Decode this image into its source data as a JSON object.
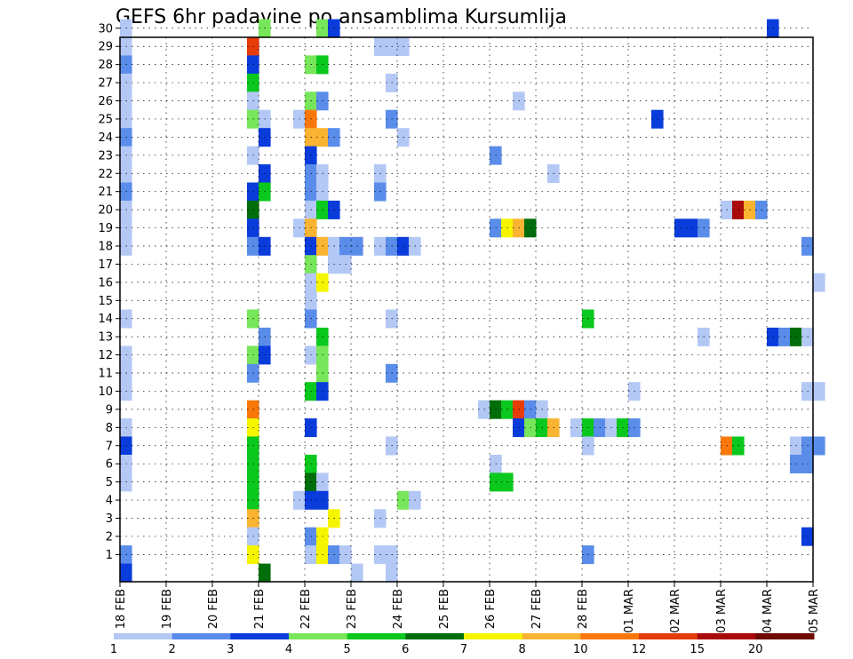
{
  "chart_data": {
    "type": "heatmap",
    "title": "GEFS 6hr padavine po ansamblima Kursumlija",
    "y_range": [
      1,
      30
    ],
    "y_ticks": [
      "1",
      "2",
      "3",
      "4",
      "5",
      "6",
      "7",
      "8",
      "9",
      "10",
      "11",
      "12",
      "13",
      "14",
      "15",
      "16",
      "17",
      "18",
      "19",
      "20",
      "21",
      "22",
      "23",
      "24",
      "25",
      "26",
      "27",
      "28",
      "29",
      "30"
    ],
    "x_ticks": [
      "18 FEB",
      "19 FEB",
      "20 FEB",
      "21 FEB",
      "22 FEB",
      "23 FEB",
      "24 FEB",
      "25 FEB",
      "26 FEB",
      "27 FEB",
      "28 FEB",
      "01 MAR",
      "02 MAR",
      "03 MAR",
      "04 MAR",
      "05 MAR"
    ],
    "grid": true,
    "colorbar": {
      "labels": [
        "1",
        "2",
        "3",
        "4",
        "5",
        "6",
        "7",
        "8",
        "10",
        "12",
        "15",
        "20"
      ],
      "colors": [
        "#b4c8f5",
        "#5a8cea",
        "#0a3cdc",
        "#78e65a",
        "#0ac81e",
        "#006e0a",
        "#f5f500",
        "#fab432",
        "#fa780a",
        "#e63c0a",
        "#aa0a0a",
        "#6e0a00"
      ]
    },
    "cells": [
      {
        "t": 0,
        "m": 30,
        "c": 0
      },
      {
        "t": 0,
        "m": 29,
        "c": 0
      },
      {
        "t": 0,
        "m": 28,
        "c": 1
      },
      {
        "t": 0,
        "m": 27,
        "c": 0
      },
      {
        "t": 0,
        "m": 26,
        "c": 0
      },
      {
        "t": 0,
        "m": 25,
        "c": 0
      },
      {
        "t": 0,
        "m": 24,
        "c": 1
      },
      {
        "t": 0,
        "m": 23,
        "c": 0
      },
      {
        "t": 0,
        "m": 22,
        "c": 0
      },
      {
        "t": 0,
        "m": 21,
        "c": 1
      },
      {
        "t": 0,
        "m": 20,
        "c": 0
      },
      {
        "t": 0,
        "m": 19,
        "c": 0
      },
      {
        "t": 0,
        "m": 18,
        "c": 0
      },
      {
        "t": 0,
        "m": 14,
        "c": 0
      },
      {
        "t": 0,
        "m": 12,
        "c": 0
      },
      {
        "t": 0,
        "m": 11,
        "c": 0
      },
      {
        "t": 0,
        "m": 10,
        "c": 0
      },
      {
        "t": 0,
        "m": 8,
        "c": 0
      },
      {
        "t": 0,
        "m": 7,
        "c": 2
      },
      {
        "t": 0,
        "m": 6,
        "c": 0
      },
      {
        "t": 0,
        "m": 5,
        "c": 0
      },
      {
        "t": 0,
        "m": 1,
        "c": 1
      },
      {
        "t": 0,
        "m": 0,
        "c": 2
      },
      {
        "t": 11,
        "m": 29,
        "c": 9
      },
      {
        "t": 11,
        "m": 28,
        "c": 2
      },
      {
        "t": 11,
        "m": 27,
        "c": 4
      },
      {
        "t": 11,
        "m": 26,
        "c": 0
      },
      {
        "t": 11,
        "m": 25,
        "c": 3
      },
      {
        "t": 11,
        "m": 23,
        "c": 0
      },
      {
        "t": 11,
        "m": 21,
        "c": 2
      },
      {
        "t": 11,
        "m": 20,
        "c": 5
      },
      {
        "t": 11,
        "m": 19,
        "c": 2
      },
      {
        "t": 11,
        "m": 18,
        "c": 1
      },
      {
        "t": 11,
        "m": 14,
        "c": 3
      },
      {
        "t": 11,
        "m": 12,
        "c": 3
      },
      {
        "t": 11,
        "m": 11,
        "c": 1
      },
      {
        "t": 11,
        "m": 9,
        "c": 8
      },
      {
        "t": 11,
        "m": 8,
        "c": 6
      },
      {
        "t": 11,
        "m": 7,
        "c": 4
      },
      {
        "t": 11,
        "m": 6,
        "c": 4
      },
      {
        "t": 11,
        "m": 5,
        "c": 4
      },
      {
        "t": 11,
        "m": 4,
        "c": 4
      },
      {
        "t": 11,
        "m": 3,
        "c": 7
      },
      {
        "t": 11,
        "m": 2,
        "c": 0
      },
      {
        "t": 11,
        "m": 1,
        "c": 6
      },
      {
        "t": 12,
        "m": 30,
        "c": 3
      },
      {
        "t": 12,
        "m": 25,
        "c": 0
      },
      {
        "t": 12,
        "m": 24,
        "c": 2
      },
      {
        "t": 12,
        "m": 22,
        "c": 2
      },
      {
        "t": 12,
        "m": 21,
        "c": 4
      },
      {
        "t": 12,
        "m": 18,
        "c": 2
      },
      {
        "t": 12,
        "m": 13,
        "c": 1
      },
      {
        "t": 12,
        "m": 12,
        "c": 2
      },
      {
        "t": 12,
        "m": 0,
        "c": 5
      },
      {
        "t": 15,
        "m": 25,
        "c": 0
      },
      {
        "t": 15,
        "m": 19,
        "c": 0
      },
      {
        "t": 15,
        "m": 4,
        "c": 0
      },
      {
        "t": 16,
        "m": 28,
        "c": 3
      },
      {
        "t": 16,
        "m": 26,
        "c": 3
      },
      {
        "t": 16,
        "m": 25,
        "c": 8
      },
      {
        "t": 16,
        "m": 24,
        "c": 7
      },
      {
        "t": 16,
        "m": 23,
        "c": 2
      },
      {
        "t": 16,
        "m": 22,
        "c": 1
      },
      {
        "t": 16,
        "m": 21,
        "c": 1
      },
      {
        "t": 16,
        "m": 20,
        "c": 0
      },
      {
        "t": 16,
        "m": 19,
        "c": 7
      },
      {
        "t": 16,
        "m": 18,
        "c": 2
      },
      {
        "t": 16,
        "m": 17,
        "c": 3
      },
      {
        "t": 16,
        "m": 16,
        "c": 0
      },
      {
        "t": 16,
        "m": 15,
        "c": 0
      },
      {
        "t": 16,
        "m": 14,
        "c": 1
      },
      {
        "t": 16,
        "m": 12,
        "c": 0
      },
      {
        "t": 16,
        "m": 10,
        "c": 4
      },
      {
        "t": 16,
        "m": 8,
        "c": 2
      },
      {
        "t": 16,
        "m": 6,
        "c": 4
      },
      {
        "t": 16,
        "m": 5,
        "c": 5
      },
      {
        "t": 16,
        "m": 4,
        "c": 2
      },
      {
        "t": 16,
        "m": 2,
        "c": 1
      },
      {
        "t": 16,
        "m": 1,
        "c": 0
      },
      {
        "t": 17,
        "m": 30,
        "c": 3
      },
      {
        "t": 17,
        "m": 28,
        "c": 4
      },
      {
        "t": 17,
        "m": 26,
        "c": 1
      },
      {
        "t": 17,
        "m": 24,
        "c": 7
      },
      {
        "t": 17,
        "m": 22,
        "c": 0
      },
      {
        "t": 17,
        "m": 21,
        "c": 0
      },
      {
        "t": 17,
        "m": 20,
        "c": 4
      },
      {
        "t": 17,
        "m": 18,
        "c": 7
      },
      {
        "t": 17,
        "m": 16,
        "c": 6
      },
      {
        "t": 17,
        "m": 13,
        "c": 4
      },
      {
        "t": 17,
        "m": 12,
        "c": 3
      },
      {
        "t": 17,
        "m": 11,
        "c": 3
      },
      {
        "t": 17,
        "m": 10,
        "c": 2
      },
      {
        "t": 17,
        "m": 5,
        "c": 0
      },
      {
        "t": 17,
        "m": 4,
        "c": 2
      },
      {
        "t": 17,
        "m": 2,
        "c": 6
      },
      {
        "t": 17,
        "m": 1,
        "c": 6
      },
      {
        "t": 18,
        "m": 30,
        "c": 2
      },
      {
        "t": 18,
        "m": 24,
        "c": 1
      },
      {
        "t": 18,
        "m": 20,
        "c": 2
      },
      {
        "t": 18,
        "m": 18,
        "c": 0
      },
      {
        "t": 18,
        "m": 17,
        "c": 0
      },
      {
        "t": 18,
        "m": 3,
        "c": 6
      },
      {
        "t": 18,
        "m": 1,
        "c": 1
      },
      {
        "t": 19,
        "m": 18,
        "c": 1
      },
      {
        "t": 19,
        "m": 17,
        "c": 0
      },
      {
        "t": 19,
        "m": 1,
        "c": 0
      },
      {
        "t": 20,
        "m": 18,
        "c": 1
      },
      {
        "t": 20,
        "m": 0,
        "c": 0
      },
      {
        "t": 22,
        "m": 29,
        "c": 0
      },
      {
        "t": 22,
        "m": 22,
        "c": 0
      },
      {
        "t": 22,
        "m": 21,
        "c": 1
      },
      {
        "t": 22,
        "m": 18,
        "c": 0
      },
      {
        "t": 22,
        "m": 3,
        "c": 0
      },
      {
        "t": 22,
        "m": 1,
        "c": 0
      },
      {
        "t": 23,
        "m": 29,
        "c": 0
      },
      {
        "t": 23,
        "m": 27,
        "c": 0
      },
      {
        "t": 23,
        "m": 25,
        "c": 1
      },
      {
        "t": 23,
        "m": 18,
        "c": 1
      },
      {
        "t": 23,
        "m": 14,
        "c": 0
      },
      {
        "t": 23,
        "m": 11,
        "c": 1
      },
      {
        "t": 23,
        "m": 7,
        "c": 0
      },
      {
        "t": 23,
        "m": 1,
        "c": 0
      },
      {
        "t": 23,
        "m": 0,
        "c": 0
      },
      {
        "t": 24,
        "m": 29,
        "c": 0
      },
      {
        "t": 24,
        "m": 24,
        "c": 0
      },
      {
        "t": 24,
        "m": 18,
        "c": 2
      },
      {
        "t": 24,
        "m": 4,
        "c": 3
      },
      {
        "t": 25,
        "m": 18,
        "c": 0
      },
      {
        "t": 25,
        "m": 4,
        "c": 0
      },
      {
        "t": 31,
        "m": 9,
        "c": 0
      },
      {
        "t": 32,
        "m": 23,
        "c": 1
      },
      {
        "t": 32,
        "m": 19,
        "c": 1
      },
      {
        "t": 32,
        "m": 9,
        "c": 5
      },
      {
        "t": 32,
        "m": 6,
        "c": 0
      },
      {
        "t": 32,
        "m": 5,
        "c": 4
      },
      {
        "t": 33,
        "m": 19,
        "c": 6
      },
      {
        "t": 33,
        "m": 9,
        "c": 4
      },
      {
        "t": 33,
        "m": 5,
        "c": 4
      },
      {
        "t": 34,
        "m": 26,
        "c": 0
      },
      {
        "t": 34,
        "m": 19,
        "c": 7
      },
      {
        "t": 34,
        "m": 9,
        "c": 9
      },
      {
        "t": 34,
        "m": 8,
        "c": 2
      },
      {
        "t": 35,
        "m": 19,
        "c": 5
      },
      {
        "t": 35,
        "m": 9,
        "c": 1
      },
      {
        "t": 35,
        "m": 8,
        "c": 3
      },
      {
        "t": 36,
        "m": 9,
        "c": 0
      },
      {
        "t": 36,
        "m": 8,
        "c": 4
      },
      {
        "t": 37,
        "m": 22,
        "c": 0
      },
      {
        "t": 37,
        "m": 8,
        "c": 7
      },
      {
        "t": 39,
        "m": 8,
        "c": 0
      },
      {
        "t": 40,
        "m": 14,
        "c": 4
      },
      {
        "t": 40,
        "m": 8,
        "c": 4
      },
      {
        "t": 40,
        "m": 7,
        "c": 0
      },
      {
        "t": 40,
        "m": 1,
        "c": 1
      },
      {
        "t": 41,
        "m": 8,
        "c": 1
      },
      {
        "t": 42,
        "m": 8,
        "c": 0
      },
      {
        "t": 43,
        "m": 8,
        "c": 4
      },
      {
        "t": 44,
        "m": 10,
        "c": 0
      },
      {
        "t": 44,
        "m": 8,
        "c": 1
      },
      {
        "t": 46,
        "m": 25,
        "c": 2
      },
      {
        "t": 48,
        "m": 19,
        "c": 2
      },
      {
        "t": 49,
        "m": 19,
        "c": 2
      },
      {
        "t": 50,
        "m": 19,
        "c": 1
      },
      {
        "t": 50,
        "m": 13,
        "c": 0
      },
      {
        "t": 52,
        "m": 20,
        "c": 0
      },
      {
        "t": 52,
        "m": 7,
        "c": 8
      },
      {
        "t": 53,
        "m": 20,
        "c": 10
      },
      {
        "t": 53,
        "m": 7,
        "c": 4
      },
      {
        "t": 54,
        "m": 20,
        "c": 7
      },
      {
        "t": 55,
        "m": 20,
        "c": 1
      },
      {
        "t": 56,
        "m": 30,
        "c": 2
      },
      {
        "t": 56,
        "m": 13,
        "c": 2
      },
      {
        "t": 57,
        "m": 13,
        "c": 1
      },
      {
        "t": 58,
        "m": 13,
        "c": 5
      },
      {
        "t": 58,
        "m": 7,
        "c": 0
      },
      {
        "t": 58,
        "m": 6,
        "c": 1
      },
      {
        "t": 59,
        "m": 13,
        "c": 0
      },
      {
        "t": 59,
        "m": 10,
        "c": 0
      },
      {
        "t": 59,
        "m": 7,
        "c": 1
      },
      {
        "t": 59,
        "m": 6,
        "c": 1
      },
      {
        "t": 59,
        "m": 2,
        "c": 2
      },
      {
        "t": 60,
        "m": 10,
        "c": 0
      },
      {
        "t": 59,
        "m": 18,
        "c": 1
      },
      {
        "t": 60,
        "m": 16,
        "c": 0
      },
      {
        "t": 60,
        "m": 7,
        "c": 1
      }
    ]
  }
}
